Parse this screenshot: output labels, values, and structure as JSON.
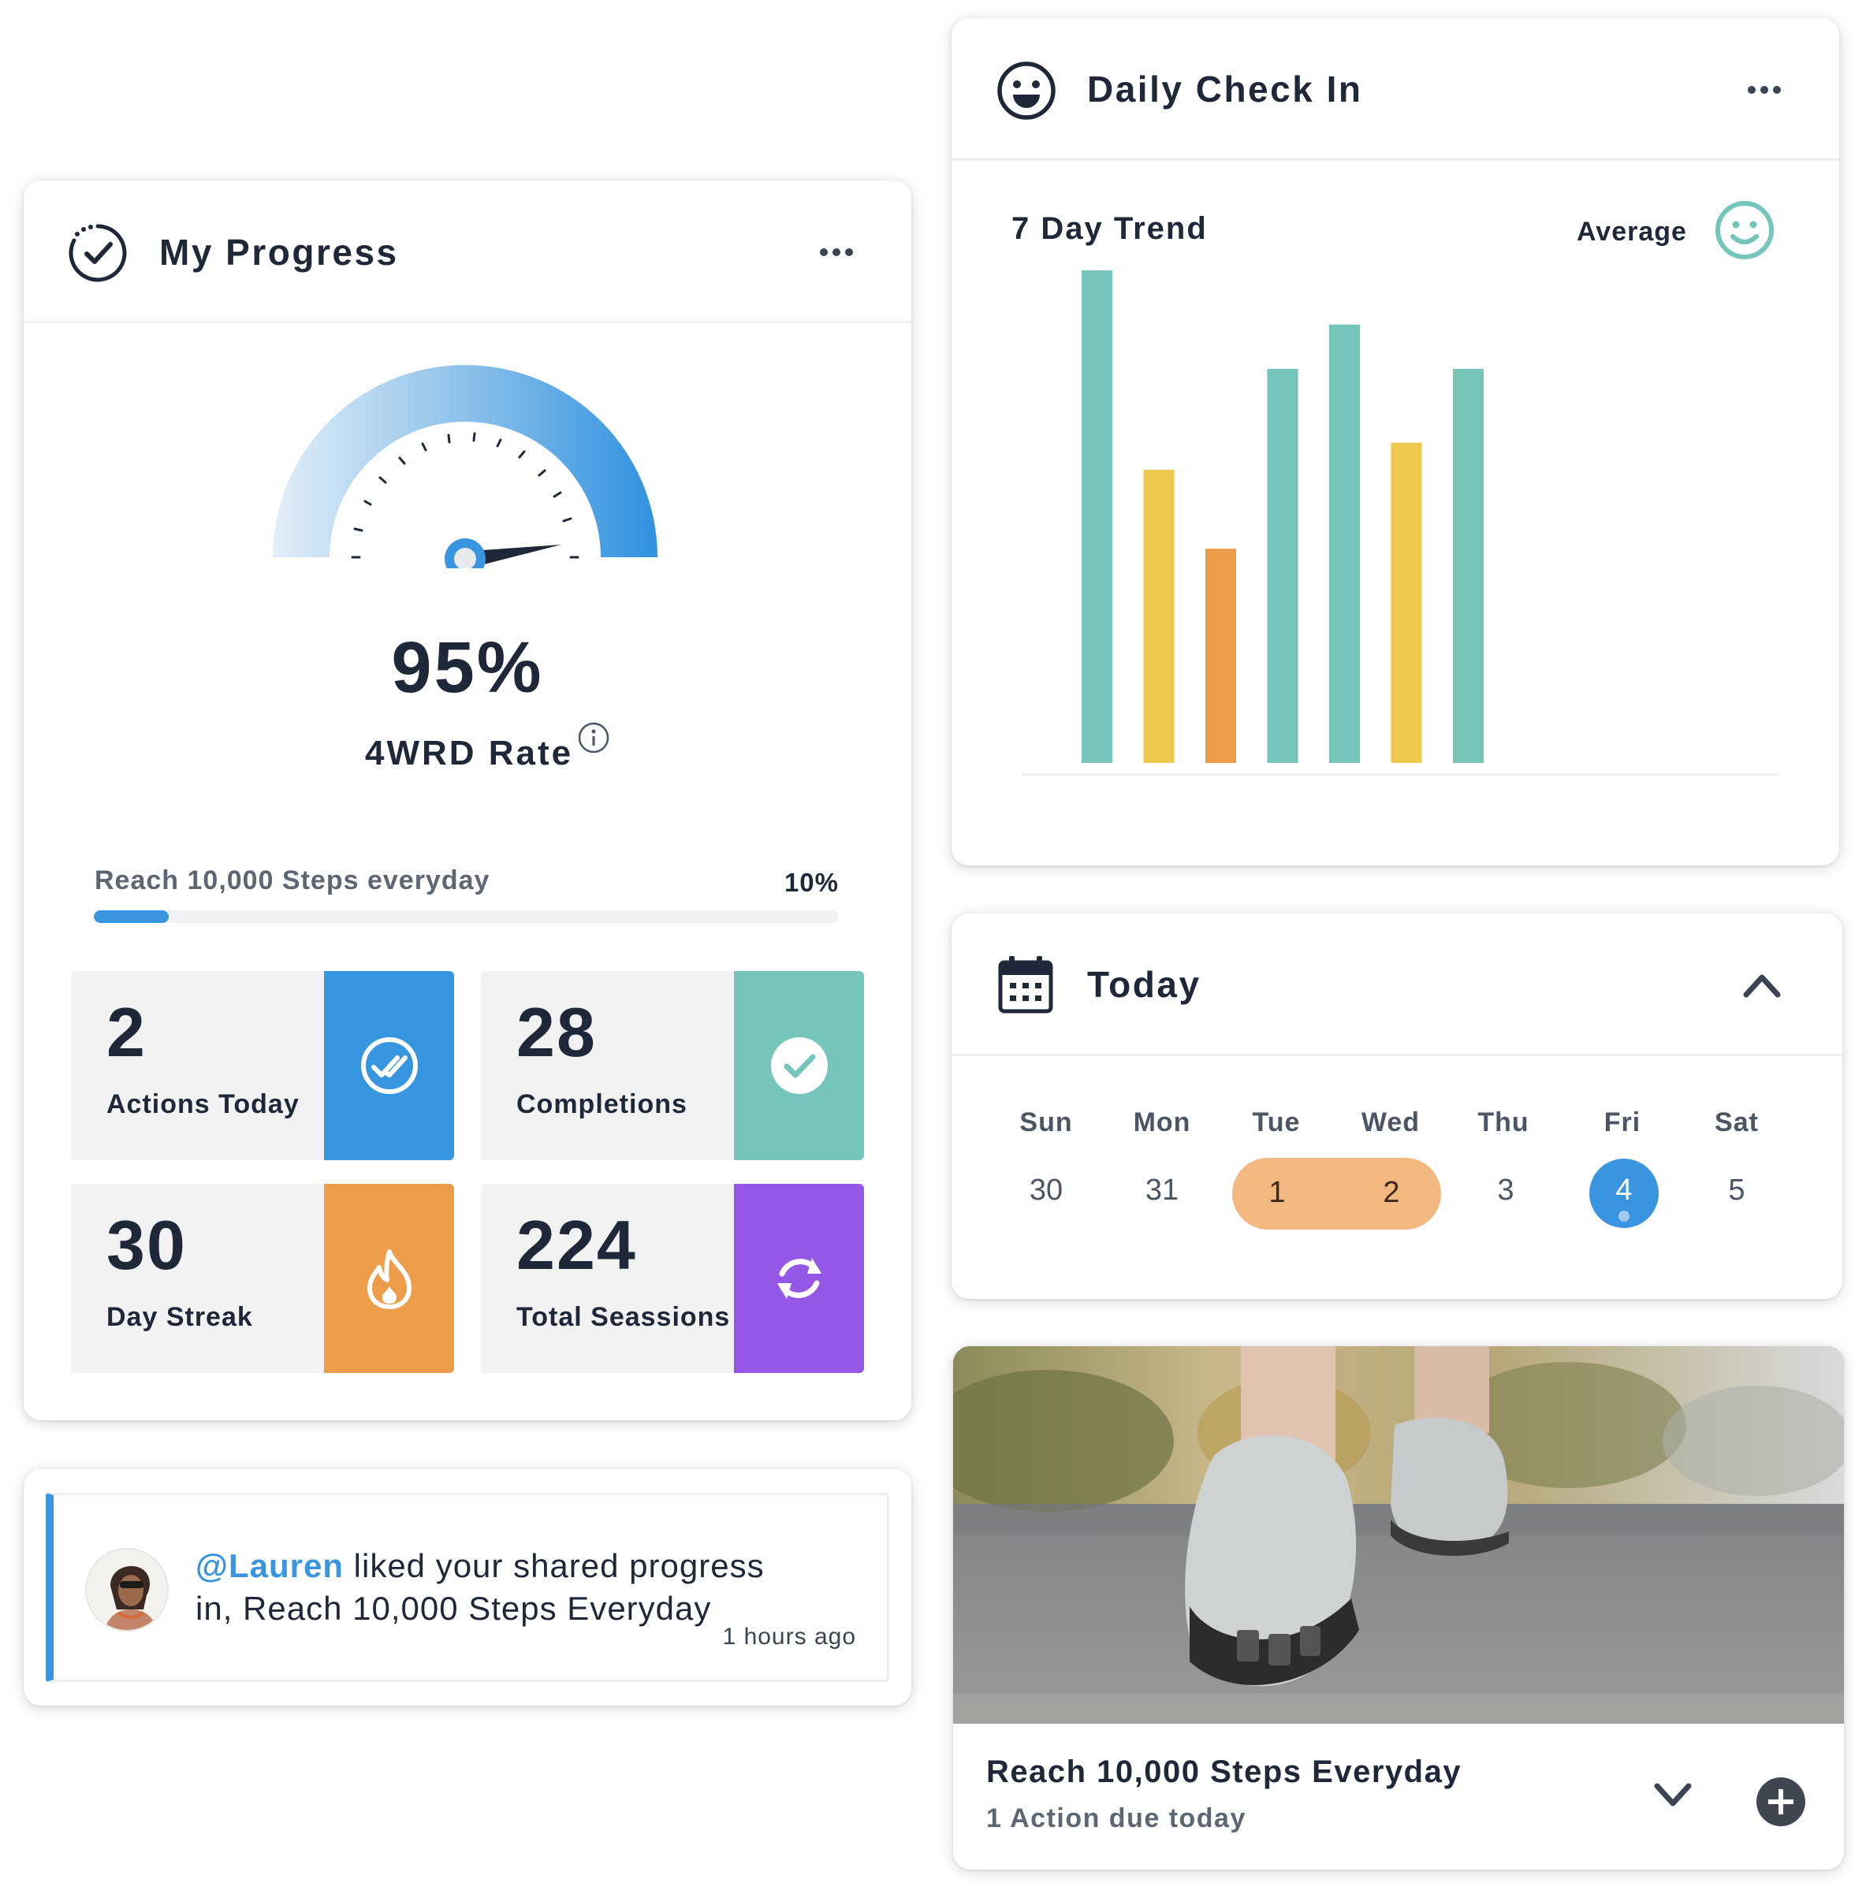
{
  "progress": {
    "title": "My Progress",
    "rate_value": "95%",
    "rate_label": "4WRD Rate",
    "goal": {
      "label": "Reach 10,000 Steps everyday",
      "percent_label": "10%",
      "fraction": 0.1
    },
    "stats": [
      {
        "number": "2",
        "label": "Actions Today",
        "icon": "double-check-icon",
        "color": "#3796e0"
      },
      {
        "number": "28",
        "label": "Completions",
        "icon": "check-circle-icon",
        "color": "#75c5bb"
      },
      {
        "number": "30",
        "label": "Day Streak",
        "icon": "flame-icon",
        "color": "#ed9c4a"
      },
      {
        "number": "224",
        "label": "Total Seassions",
        "icon": "sync-icon",
        "color": "#9457e6"
      }
    ]
  },
  "notification": {
    "mention": "@Lauren",
    "text_1": " liked your shared progress",
    "text_2": "in, Reach 10,000 Steps Everyday",
    "time": "1 hours ago"
  },
  "checkin": {
    "title": "Daily Check In",
    "trend_label": "7 Day Trend",
    "average_label": "Average",
    "colors": {
      "good": "#75c5bb",
      "ok": "#ecc84d",
      "low": "#ed9c4a"
    }
  },
  "chart_data": {
    "type": "bar",
    "categories": [
      "",
      "",
      "",
      "",
      "",
      "",
      ""
    ],
    "values": [
      100,
      59.5,
      43.5,
      80,
      89,
      65,
      80
    ],
    "colors": [
      "#75c5bb",
      "#ecc84d",
      "#ed9c4a",
      "#75c5bb",
      "#75c5bb",
      "#ecc84d",
      "#75c5bb"
    ],
    "ylim": [
      0,
      100
    ],
    "grid": false,
    "title": "",
    "xlabel": "",
    "ylabel": ""
  },
  "today": {
    "title": "Today",
    "days": [
      "Sun",
      "Mon",
      "Tue",
      "Wed",
      "Thu",
      "Fri",
      "Sat"
    ],
    "dates": [
      "30",
      "31",
      "1",
      "2",
      "3",
      "4",
      "5"
    ]
  },
  "goal_card": {
    "title": "Reach 10,000 Steps Everyday",
    "subtitle": "1 Action due today"
  }
}
